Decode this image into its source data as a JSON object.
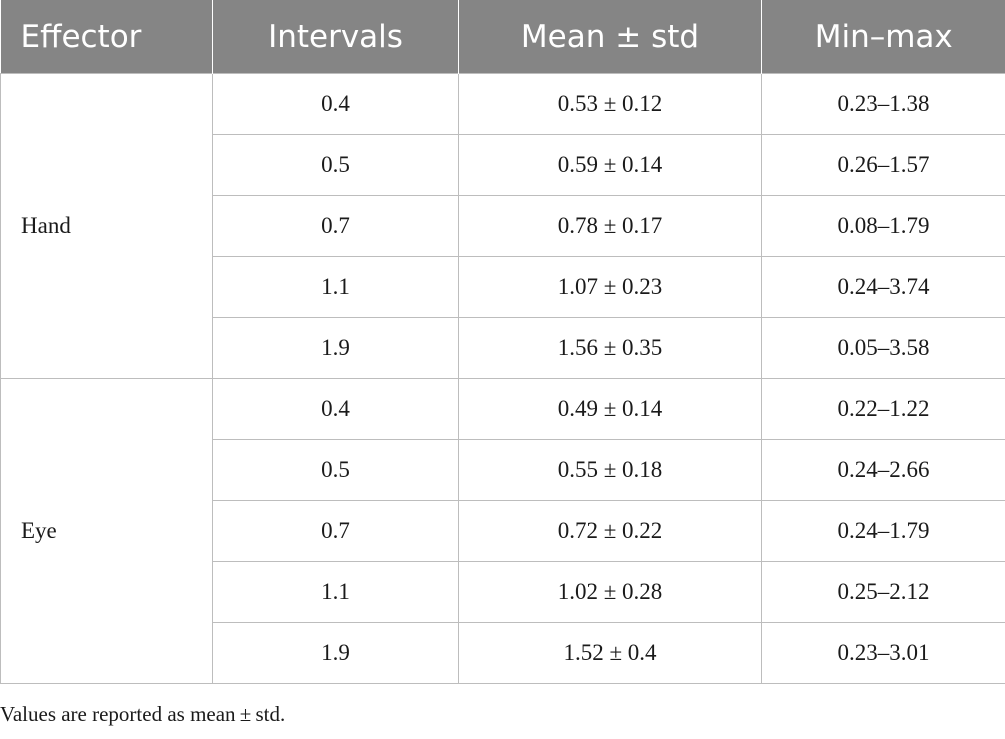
{
  "table": {
    "headers": [
      "Effector",
      "Intervals",
      "Mean ± std",
      "Min–max"
    ],
    "groups": [
      {
        "effector": "Hand",
        "rows": [
          {
            "interval": "0.4",
            "mean_std": "0.53 ± 0.12",
            "min_max": "0.23–1.38"
          },
          {
            "interval": "0.5",
            "mean_std": "0.59 ± 0.14",
            "min_max": "0.26–1.57"
          },
          {
            "interval": "0.7",
            "mean_std": "0.78 ± 0.17",
            "min_max": "0.08–1.79"
          },
          {
            "interval": "1.1",
            "mean_std": "1.07 ± 0.23",
            "min_max": "0.24–3.74"
          },
          {
            "interval": "1.9",
            "mean_std": "1.56 ± 0.35",
            "min_max": "0.05–3.58"
          }
        ]
      },
      {
        "effector": "Eye",
        "rows": [
          {
            "interval": "0.4",
            "mean_std": "0.49 ± 0.14",
            "min_max": "0.22–1.22"
          },
          {
            "interval": "0.5",
            "mean_std": "0.55 ± 0.18",
            "min_max": "0.24–2.66"
          },
          {
            "interval": "0.7",
            "mean_std": "0.72 ± 0.22",
            "min_max": "0.24–1.79"
          },
          {
            "interval": "1.1",
            "mean_std": "1.02 ± 0.28",
            "min_max": "0.25–2.12"
          },
          {
            "interval": "1.9",
            "mean_std": "1.52 ± 0.4",
            "min_max": "0.23–3.01"
          }
        ]
      }
    ]
  },
  "caption": "Values are reported as mean ± std."
}
